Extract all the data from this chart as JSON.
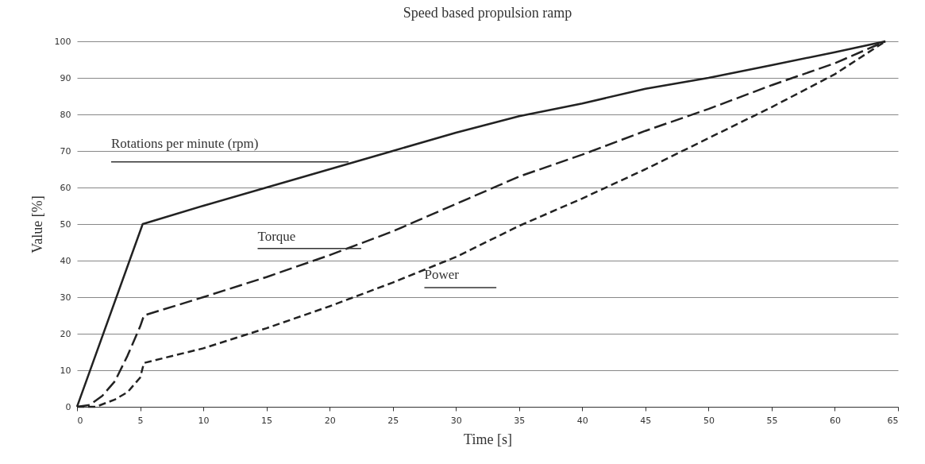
{
  "chart_data": {
    "type": "line",
    "title": "Speed based propulsion ramp",
    "xlabel": "Time [s]",
    "ylabel": "Value [%]",
    "xlim": [
      0,
      65
    ],
    "xticks": [
      0,
      5,
      10,
      15,
      20,
      25,
      30,
      35,
      40,
      45,
      50,
      55,
      60,
      65
    ],
    "ylim": [
      0,
      100
    ],
    "yticks": [
      0,
      10,
      20,
      30,
      40,
      50,
      60,
      70,
      80,
      90,
      100
    ],
    "grid": "y",
    "legend": false,
    "series": [
      {
        "name": "Rotations per minute (rpm)",
        "color": "#222222",
        "line_style": "solid",
        "x": [
          0,
          5.2,
          10,
          15,
          20,
          25,
          30,
          35,
          40,
          45,
          50,
          55,
          60,
          64
        ],
        "values": [
          0,
          50,
          55,
          60,
          65,
          70,
          75,
          79.5,
          83,
          87,
          90,
          93.5,
          97,
          100
        ]
      },
      {
        "name": "Torque",
        "color": "#222222",
        "line_style": "dashed",
        "x": [
          0,
          1,
          2,
          3,
          4,
          5,
          5.3,
          10,
          15,
          20,
          25,
          30,
          31,
          35,
          40,
          45,
          50,
          55,
          60,
          64
        ],
        "values": [
          0,
          0.5,
          3,
          7,
          14,
          22,
          25,
          30,
          35.5,
          41.5,
          48,
          55.5,
          57,
          63,
          69,
          75.5,
          81.5,
          88,
          94,
          100
        ]
      },
      {
        "name": "Power",
        "color": "#222222",
        "line_style": "dashed",
        "x": [
          0,
          1.5,
          3,
          4,
          5,
          5.3,
          10,
          15,
          20,
          25,
          30,
          35,
          40,
          45,
          50,
          55,
          60,
          64
        ],
        "values": [
          0,
          0,
          2,
          4,
          8,
          12,
          16,
          21.5,
          27.5,
          34,
          41,
          49.5,
          57,
          65,
          73.5,
          82,
          91,
          100
        ]
      }
    ]
  }
}
